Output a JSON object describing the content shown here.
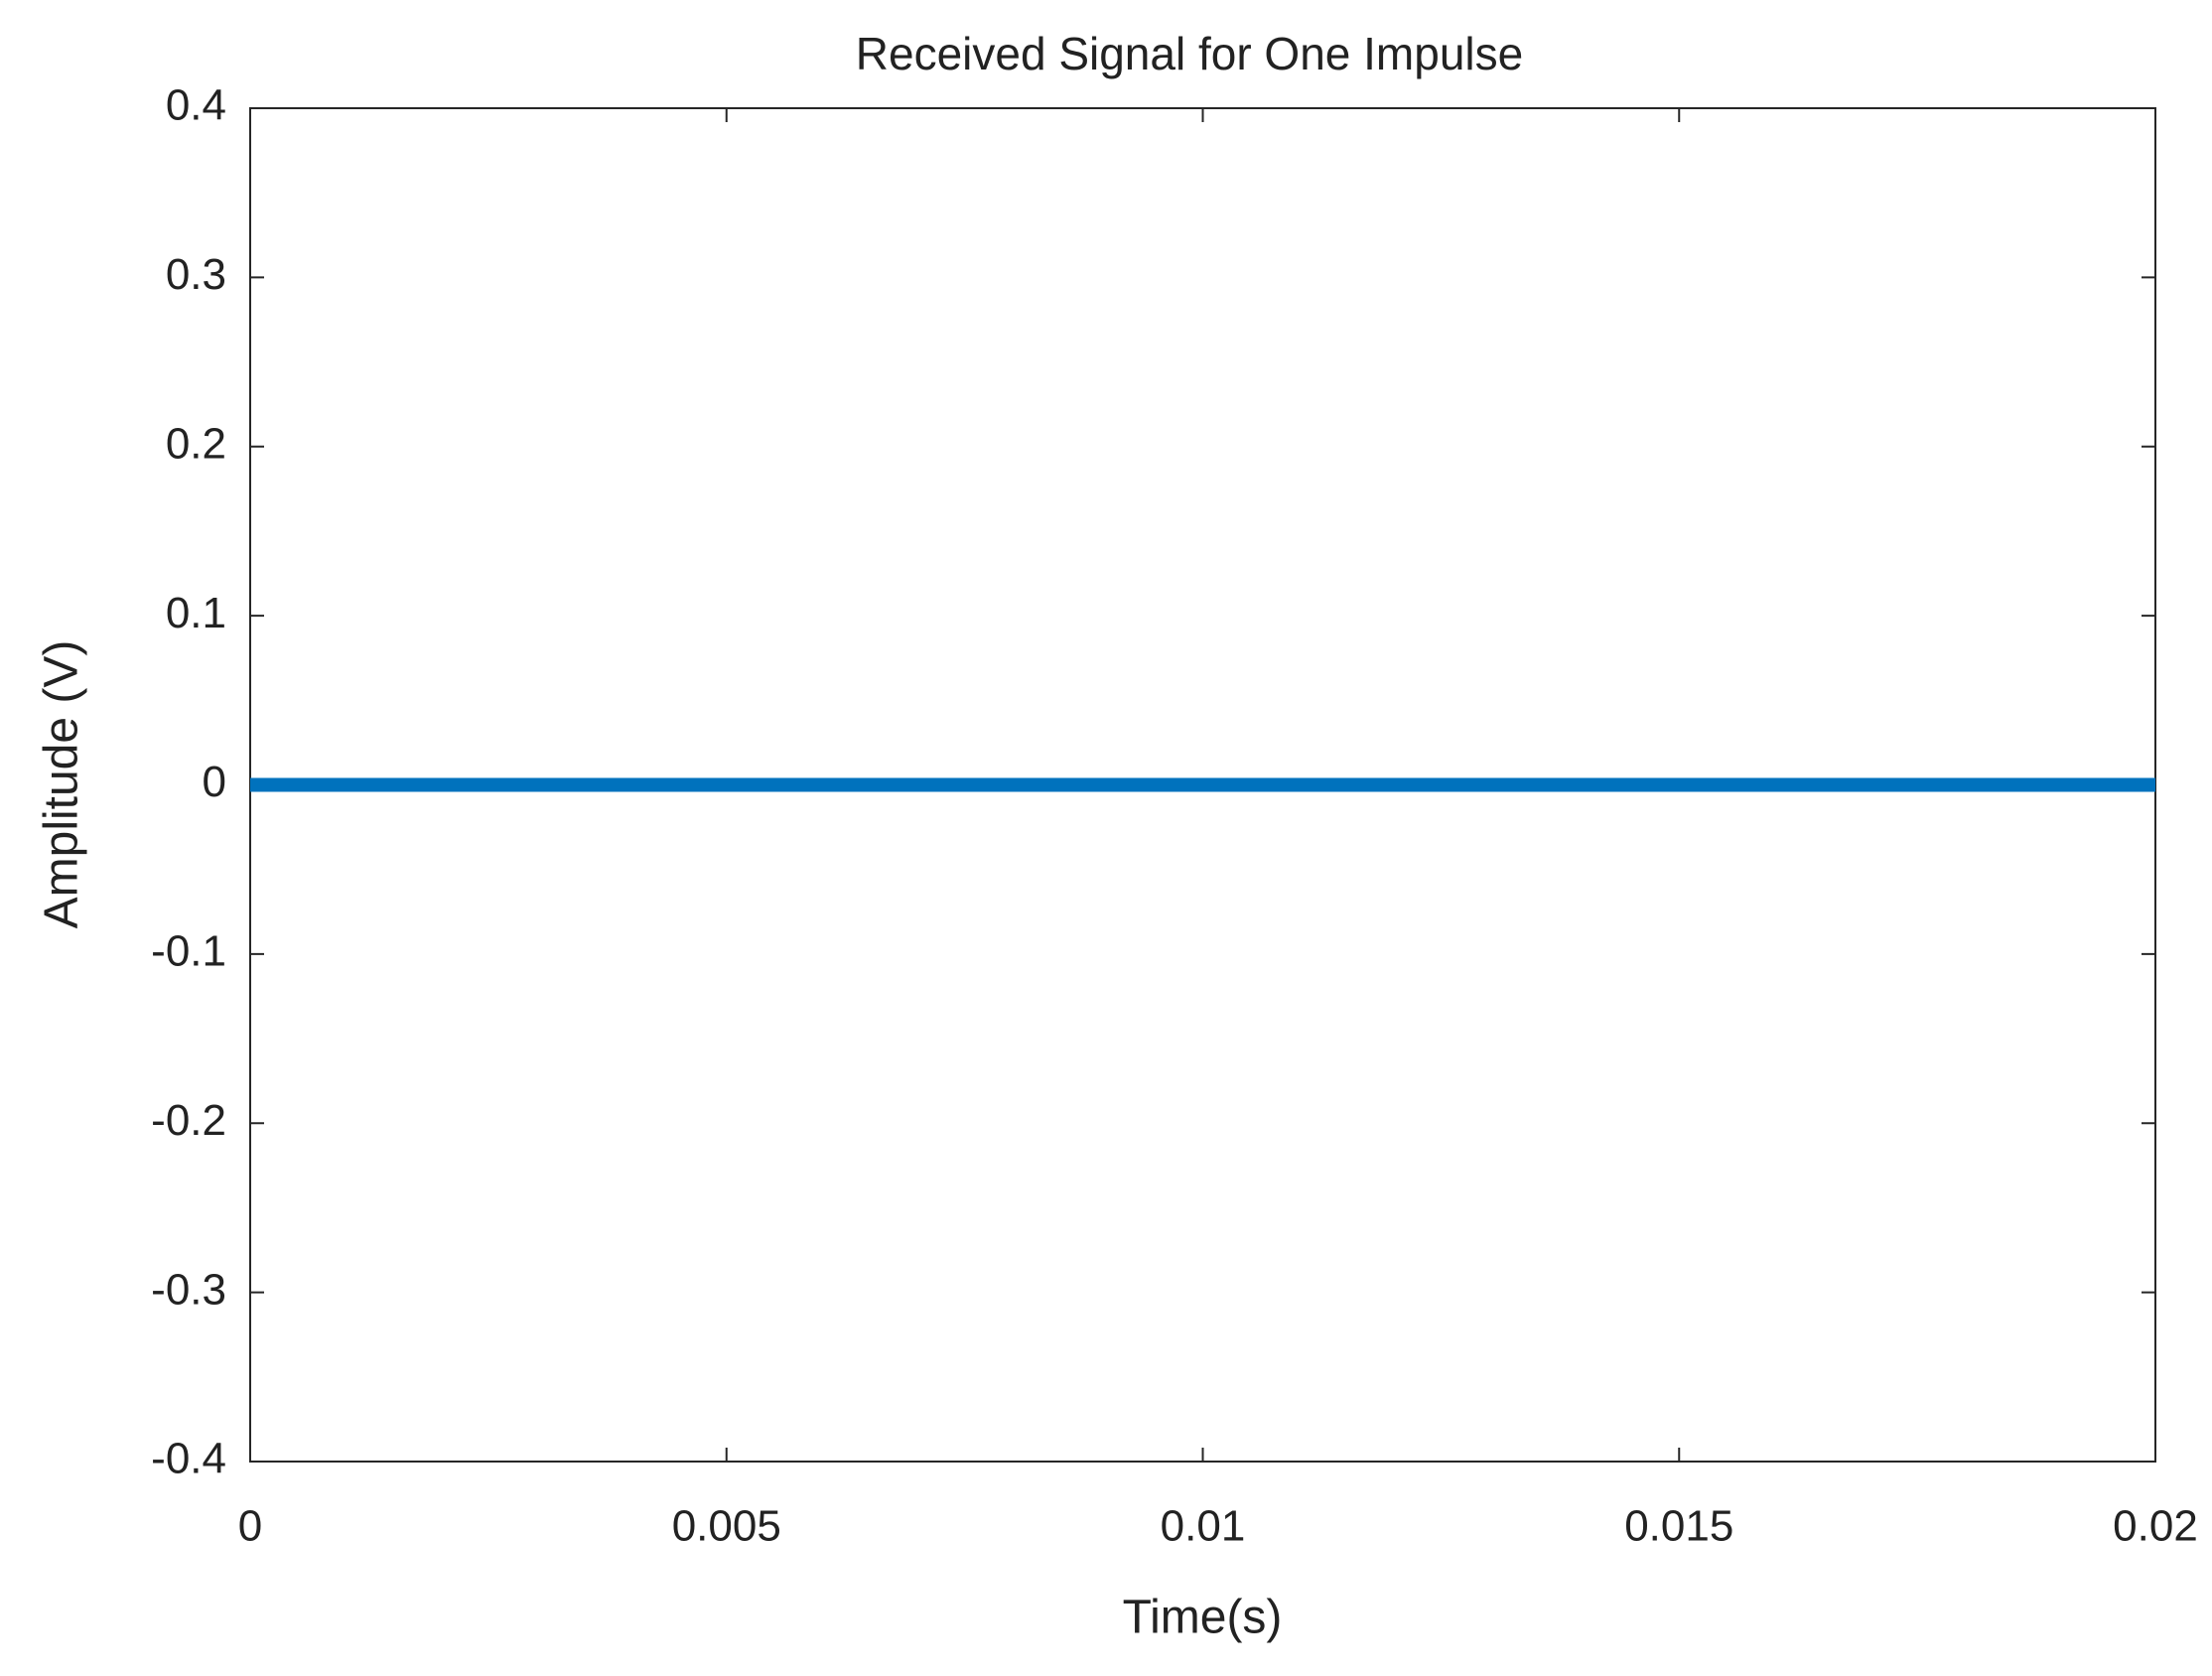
{
  "chart_data": {
    "type": "line",
    "title": "Received Signal for One Impulse",
    "x_label": "Time(s)",
    "y_label": "Amplitude (V)",
    "x": [
      0,
      0.005,
      0.01,
      0.015,
      0.02
    ],
    "series": [
      {
        "color": "#0072bd",
        "values": [
          0,
          0,
          0,
          0,
          0
        ]
      }
    ],
    "xlim": [
      0,
      0.02
    ],
    "xticks": [
      0,
      0.005,
      0.01,
      0.015,
      0.02
    ],
    "ylim": [
      -0.4,
      0.4
    ],
    "yticks": [
      -0.4,
      -0.3,
      -0.2,
      -0.1,
      0,
      0.1,
      0.2,
      0.3,
      0.4
    ],
    "grid": false
  }
}
